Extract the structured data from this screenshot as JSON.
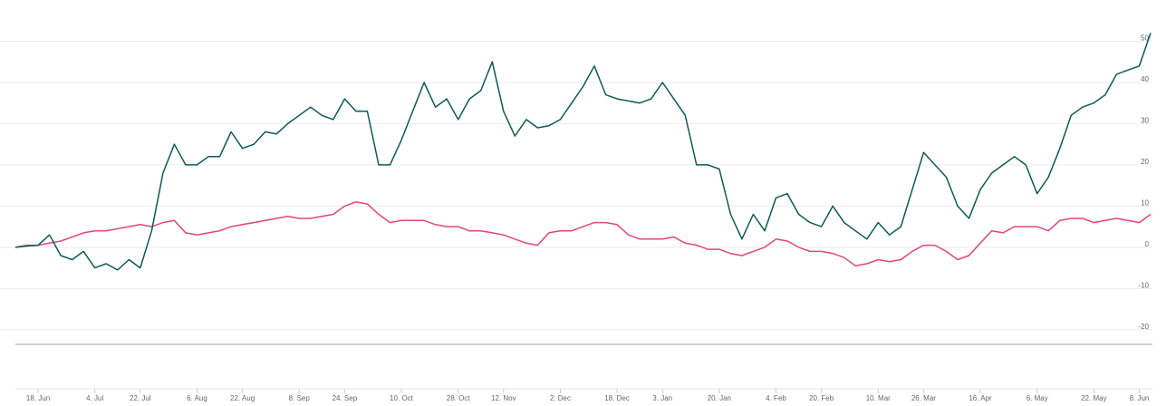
{
  "chart_data": {
    "type": "line",
    "categories": [
      null,
      null,
      "18. Jun",
      null,
      null,
      null,
      null,
      "4. Jul",
      null,
      null,
      null,
      "22. Jul",
      null,
      null,
      null,
      null,
      "6. Aug",
      null,
      null,
      null,
      "22. Aug",
      null,
      null,
      null,
      null,
      "8. Sep",
      null,
      null,
      null,
      "24. Sep",
      null,
      null,
      null,
      null,
      "10. Oct",
      null,
      null,
      null,
      null,
      "28. Oct",
      null,
      null,
      null,
      "12. Nov",
      null,
      null,
      null,
      null,
      "2. Dec",
      null,
      null,
      null,
      null,
      "18. Dec",
      null,
      null,
      null,
      "3. Jan",
      null,
      null,
      null,
      null,
      "20. Jan",
      null,
      null,
      null,
      null,
      "4. Feb",
      null,
      null,
      null,
      "20. Feb",
      null,
      null,
      null,
      null,
      "10. Mar",
      null,
      null,
      null,
      "26. Mar",
      null,
      null,
      null,
      null,
      "16. Apr",
      null,
      null,
      null,
      null,
      "6. May",
      null,
      null,
      null,
      null,
      "22. May",
      null,
      null,
      null,
      "8. Jun",
      null
    ],
    "series": [
      {
        "color": "#0c5a58",
        "values": [
          0,
          0.3,
          0.5,
          3,
          -2,
          -3,
          -1,
          -5,
          -4,
          -5.5,
          -3,
          -5,
          4,
          18,
          25,
          20,
          20,
          22,
          22,
          28,
          24,
          25,
          28,
          27.5,
          30,
          32,
          34,
          32,
          31,
          36,
          33,
          33,
          20,
          20,
          26,
          33,
          40,
          34,
          36,
          31,
          36,
          38,
          45,
          33,
          27,
          31,
          29,
          29.5,
          31,
          35,
          39,
          44,
          37,
          36,
          35.5,
          35,
          36,
          40,
          36,
          32,
          20,
          20,
          19,
          8,
          2,
          8,
          4,
          12,
          13,
          8,
          6,
          5,
          10,
          6,
          4,
          2,
          6,
          3,
          5,
          14,
          23,
          20,
          17,
          10,
          7,
          14,
          18,
          20,
          22,
          20,
          13,
          17,
          24,
          32,
          34,
          35,
          37,
          42,
          43,
          44,
          52
        ]
      },
      {
        "color": "#e0457b",
        "values": [
          0,
          0.5,
          0.5,
          1,
          1.5,
          2.5,
          3.5,
          4,
          4,
          4.5,
          5,
          5.5,
          5,
          6,
          6.5,
          3.5,
          3,
          3.5,
          4,
          5,
          5.5,
          6,
          6.5,
          7,
          7.5,
          7,
          7,
          7.5,
          8,
          10,
          11,
          10.5,
          8,
          6,
          6.5,
          6.5,
          6.5,
          5.5,
          5,
          5,
          4,
          4,
          3.5,
          3,
          2,
          1,
          0.5,
          3.5,
          4,
          4,
          5,
          6,
          6,
          5.5,
          3,
          2,
          2,
          2,
          2.5,
          1,
          0.5,
          -0.5,
          -0.5,
          -1.5,
          -2,
          -1,
          0,
          2,
          1.5,
          0,
          -1,
          -1,
          -1.5,
          -2.5,
          -4.5,
          -4,
          -3,
          -3.5,
          -3,
          -1,
          0.5,
          0.5,
          -1,
          -3,
          -2,
          1,
          4,
          3.5,
          5,
          5,
          5,
          4,
          6.5,
          7,
          7,
          6,
          6.5,
          7,
          6.5,
          6,
          8
        ]
      }
    ],
    "ylim": [
      -24,
      60
    ],
    "yticks": [
      -20,
      -10,
      0,
      10,
      20,
      30,
      40,
      50
    ],
    "grid": true
  }
}
